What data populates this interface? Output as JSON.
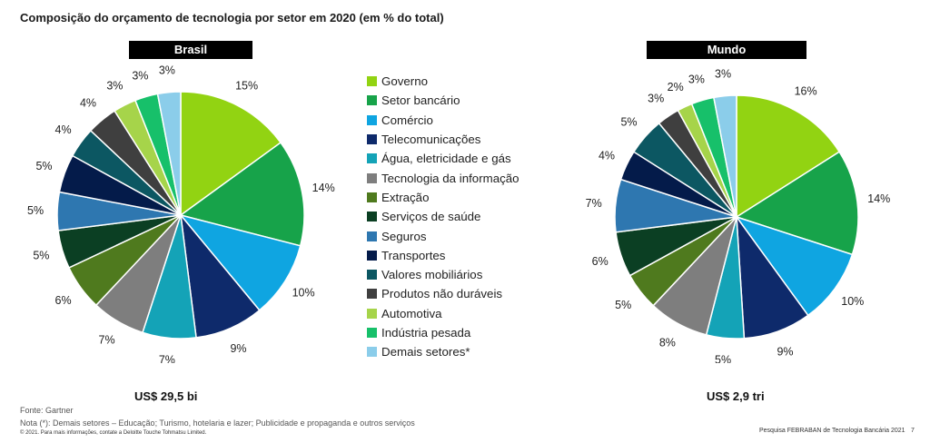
{
  "title": "Composição do orçamento de tecnologia por setor em 2020 (em % do total)",
  "colors": [
    "#92D312",
    "#17A34A",
    "#0FA5E1",
    "#0E2A6B",
    "#14A3B7",
    "#7E7E7E",
    "#4F7A1E",
    "#0B3F23",
    "#2E77B0",
    "#041B4A",
    "#0C5762",
    "#3F3F3F",
    "#A6D44A",
    "#17C06A",
    "#8BCDEA"
  ],
  "legend": [
    "Governo",
    "Setor bancário",
    "Comércio",
    "Telecomunicações",
    "Água, eletricidade e gás",
    "Tecnologia da informação",
    "Extração",
    "Serviços de saúde",
    "Seguros",
    "Transportes",
    "Valores mobiliários",
    "Produtos não duráveis",
    "Automotiva",
    "Indústria pesada",
    "Demais setores*"
  ],
  "chart_data": [
    {
      "type": "pie",
      "title": "Brasil",
      "total_label": "US$ 29,5 bi",
      "categories": [
        "Governo",
        "Setor bancário",
        "Comércio",
        "Telecomunicações",
        "Água, eletricidade e gás",
        "Tecnologia da informação",
        "Extração",
        "Serviços de saúde",
        "Seguros",
        "Transportes",
        "Valores mobiliários",
        "Produtos não duráveis",
        "Automotiva",
        "Indústria pesada",
        "Demais setores*"
      ],
      "values": [
        15,
        14,
        10,
        9,
        7,
        7,
        6,
        5,
        5,
        5,
        4,
        4,
        3,
        3,
        3
      ],
      "labels": [
        "15%",
        "14%",
        "10%",
        "9%",
        "7%",
        "7%",
        "6%",
        "5%",
        "5%",
        "5%",
        "4%",
        "4%",
        "3%",
        "3%",
        "3%"
      ]
    },
    {
      "type": "pie",
      "title": "Mundo",
      "total_label": "US$ 2,9 tri",
      "categories": [
        "Governo",
        "Setor bancário",
        "Comércio",
        "Telecomunicações",
        "Água, eletricidade e gás",
        "Tecnologia da informação",
        "Extração",
        "Serviços de saúde",
        "Seguros",
        "Transportes",
        "Valores mobiliários",
        "Produtos não duráveis",
        "Automotiva",
        "Indústria pesada",
        "Demais setores*"
      ],
      "values": [
        16,
        14,
        10,
        9,
        5,
        8,
        5,
        6,
        7,
        4,
        5,
        3,
        2,
        3,
        3
      ],
      "labels": [
        "16%",
        "14%",
        "10%",
        "9%",
        "5%",
        "8%",
        "5%",
        "6%",
        "7%",
        "4%",
        "5%",
        "3%",
        "2%",
        "3%",
        "3%"
      ]
    }
  ],
  "footer": {
    "source": "Fonte: Gartner",
    "note": "Nota (*): Demais setores – Educação; Turismo, hotelaria e lazer; Publicidade e propaganda e outros serviços",
    "copyright": "© 2021. Para mais informações, contate a  Deloitte Touche Tohmatsu Limited.",
    "survey": "Pesquisa FEBRABAN de Tecnologia Bancária 2021",
    "page": "7"
  }
}
